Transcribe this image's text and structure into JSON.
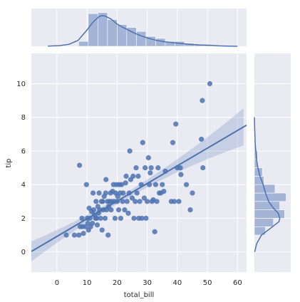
{
  "chart_data": {
    "type": "jointplot",
    "xlabel": "total_bill",
    "ylabel": "tip",
    "xlim": [
      -8.5,
      63
    ],
    "ylim": [
      -1.2,
      11.8
    ],
    "xticks": [
      0,
      10,
      20,
      30,
      40,
      50,
      60
    ],
    "yticks": [
      0,
      2,
      4,
      6,
      8,
      10
    ],
    "grid": true,
    "colors": {
      "point": "#4c72b0",
      "fill": "#a3b4d6",
      "band": "#c3cde3",
      "panel": "#eaeaf2"
    },
    "scatter": [
      [
        3.1,
        1.0
      ],
      [
        5.8,
        1.0
      ],
      [
        7.3,
        1.0
      ],
      [
        7.5,
        5.15
      ],
      [
        7.7,
        1.5
      ],
      [
        8.3,
        2.0
      ],
      [
        8.5,
        1.5
      ],
      [
        8.8,
        1.1
      ],
      [
        9.5,
        1.5
      ],
      [
        9.8,
        4.0
      ],
      [
        10.1,
        2.0
      ],
      [
        10.3,
        1.7
      ],
      [
        10.5,
        1.3
      ],
      [
        10.7,
        2.6
      ],
      [
        11.0,
        2.0
      ],
      [
        11.2,
        1.5
      ],
      [
        11.5,
        2.4
      ],
      [
        11.8,
        1.7
      ],
      [
        12.0,
        3.5
      ],
      [
        12.2,
        2.5
      ],
      [
        12.5,
        2.2
      ],
      [
        12.8,
        2.0
      ],
      [
        13.0,
        3.0
      ],
      [
        13.2,
        2.0
      ],
      [
        13.4,
        1.6
      ],
      [
        13.6,
        2.7
      ],
      [
        13.8,
        2.3
      ],
      [
        14.0,
        3.5
      ],
      [
        14.2,
        2.5
      ],
      [
        14.5,
        2.0
      ],
      [
        14.8,
        3.0
      ],
      [
        15.0,
        1.3
      ],
      [
        15.2,
        3.0
      ],
      [
        15.4,
        2.5
      ],
      [
        15.7,
        3.3
      ],
      [
        16.0,
        2.0
      ],
      [
        16.2,
        3.5
      ],
      [
        16.3,
        4.3
      ],
      [
        16.5,
        2.5
      ],
      [
        16.8,
        3.0
      ],
      [
        17.0,
        1.0
      ],
      [
        17.2,
        2.7
      ],
      [
        17.5,
        3.0
      ],
      [
        17.8,
        3.5
      ],
      [
        18.0,
        2.5
      ],
      [
        18.2,
        3.0
      ],
      [
        18.5,
        3.6
      ],
      [
        18.8,
        4.0
      ],
      [
        19.0,
        3.0
      ],
      [
        19.3,
        2.0
      ],
      [
        19.5,
        3.5
      ],
      [
        19.8,
        4.0
      ],
      [
        20.0,
        3.0
      ],
      [
        20.2,
        3.3
      ],
      [
        20.5,
        2.5
      ],
      [
        20.7,
        4.0
      ],
      [
        21.0,
        3.5
      ],
      [
        21.2,
        2.0
      ],
      [
        21.5,
        4.0
      ],
      [
        21.8,
        3.0
      ],
      [
        22.0,
        3.5
      ],
      [
        22.5,
        2.5
      ],
      [
        22.8,
        4.1
      ],
      [
        23.0,
        4.5
      ],
      [
        23.3,
        3.0
      ],
      [
        23.7,
        2.3
      ],
      [
        24.0,
        3.5
      ],
      [
        24.2,
        6.0
      ],
      [
        24.5,
        4.3
      ],
      [
        25.0,
        3.2
      ],
      [
        25.3,
        4.5
      ],
      [
        25.6,
        2.0
      ],
      [
        26.0,
        3.0
      ],
      [
        26.3,
        5.0
      ],
      [
        26.6,
        3.5
      ],
      [
        27.0,
        4.5
      ],
      [
        27.2,
        2.0
      ],
      [
        27.5,
        3.0
      ],
      [
        28.0,
        4.0
      ],
      [
        28.2,
        2.0
      ],
      [
        28.5,
        6.5
      ],
      [
        29.0,
        3.2
      ],
      [
        29.3,
        5.0
      ],
      [
        29.6,
        2.0
      ],
      [
        30.0,
        3.0
      ],
      [
        30.4,
        5.6
      ],
      [
        30.7,
        4.0
      ],
      [
        31.0,
        4.7
      ],
      [
        31.3,
        5.0
      ],
      [
        31.6,
        3.0
      ],
      [
        32.0,
        3.1
      ],
      [
        32.5,
        1.2
      ],
      [
        32.8,
        4.0
      ],
      [
        33.2,
        3.0
      ],
      [
        33.6,
        5.0
      ],
      [
        34.0,
        3.5
      ],
      [
        34.5,
        3.5
      ],
      [
        35.0,
        4.0
      ],
      [
        35.5,
        3.6
      ],
      [
        36.0,
        4.8
      ],
      [
        38.0,
        3.0
      ],
      [
        38.5,
        6.5
      ],
      [
        39.0,
        3.0
      ],
      [
        39.5,
        7.6
      ],
      [
        40.0,
        5.0
      ],
      [
        40.5,
        3.0
      ],
      [
        41.0,
        5.0
      ],
      [
        41.2,
        4.6
      ],
      [
        43.0,
        4.0
      ],
      [
        44.3,
        2.5
      ],
      [
        45.0,
        3.5
      ],
      [
        48.0,
        6.7
      ],
      [
        48.3,
        9.0
      ],
      [
        48.5,
        5.0
      ],
      [
        50.8,
        10.0
      ]
    ],
    "regression": {
      "slope": 0.105,
      "intercept": 0.92
    },
    "x_hist": {
      "bin_width": 3.2,
      "bins": [
        {
          "x0": 7.2,
          "count": 5
        },
        {
          "x0": 10.4,
          "count": 33
        },
        {
          "x0": 13.6,
          "count": 34
        },
        {
          "x0": 16.8,
          "count": 27
        },
        {
          "x0": 20.0,
          "count": 22
        },
        {
          "x0": 23.2,
          "count": 19
        },
        {
          "x0": 26.4,
          "count": 15
        },
        {
          "x0": 29.6,
          "count": 10
        },
        {
          "x0": 32.8,
          "count": 8
        },
        {
          "x0": 36.0,
          "count": 5
        },
        {
          "x0": 39.2,
          "count": 5
        },
        {
          "x0": 42.4,
          "count": 3
        },
        {
          "x0": 45.6,
          "count": 2
        },
        {
          "x0": 48.8,
          "count": 1
        }
      ]
    },
    "y_hist": {
      "bin_width": 0.5,
      "bins": [
        {
          "y0": 1.0,
          "count": 7
        },
        {
          "y0": 1.5,
          "count": 12
        },
        {
          "y0": 2.0,
          "count": 19
        },
        {
          "y0": 2.5,
          "count": 16
        },
        {
          "y0": 3.0,
          "count": 20
        },
        {
          "y0": 3.5,
          "count": 13
        },
        {
          "y0": 4.0,
          "count": 6
        },
        {
          "y0": 4.5,
          "count": 5
        },
        {
          "y0": 5.0,
          "count": 2
        },
        {
          "y0": 5.5,
          "count": 2
        },
        {
          "y0": 6.0,
          "count": 1
        }
      ]
    },
    "x_kde": [
      [
        -3,
        0.2
      ],
      [
        1,
        0.7
      ],
      [
        4,
        2.0
      ],
      [
        7,
        6.0
      ],
      [
        10,
        16.5
      ],
      [
        12,
        24.5
      ],
      [
        14,
        30.0
      ],
      [
        15,
        31.0
      ],
      [
        16,
        30.5
      ],
      [
        18,
        27.5
      ],
      [
        20,
        22.5
      ],
      [
        22,
        19.0
      ],
      [
        24,
        16.0
      ],
      [
        26,
        13.0
      ],
      [
        28,
        10.5
      ],
      [
        30,
        8.5
      ],
      [
        33,
        6.0
      ],
      [
        36,
        4.5
      ],
      [
        39,
        3.5
      ],
      [
        42,
        2.6
      ],
      [
        45,
        1.8
      ],
      [
        48,
        1.4
      ],
      [
        51,
        1.0
      ],
      [
        54,
        0.4
      ],
      [
        57,
        0.15
      ],
      [
        60,
        0.0
      ]
    ],
    "y_kde": [
      [
        0.0,
        0.2
      ],
      [
        0.5,
        1.5
      ],
      [
        1.0,
        4.5
      ],
      [
        1.5,
        11.5
      ],
      [
        1.8,
        15.5
      ],
      [
        2.0,
        16.0
      ],
      [
        2.3,
        15.0
      ],
      [
        2.6,
        12.0
      ],
      [
        3.0,
        9.0
      ],
      [
        3.5,
        7.0
      ],
      [
        4.0,
        5.5
      ],
      [
        4.5,
        3.5
      ],
      [
        5.0,
        2.2
      ],
      [
        5.5,
        1.4
      ],
      [
        6.0,
        0.9
      ],
      [
        6.5,
        0.5
      ],
      [
        7.0,
        0.3
      ],
      [
        7.5,
        0.15
      ],
      [
        8.0,
        0.05
      ]
    ]
  }
}
